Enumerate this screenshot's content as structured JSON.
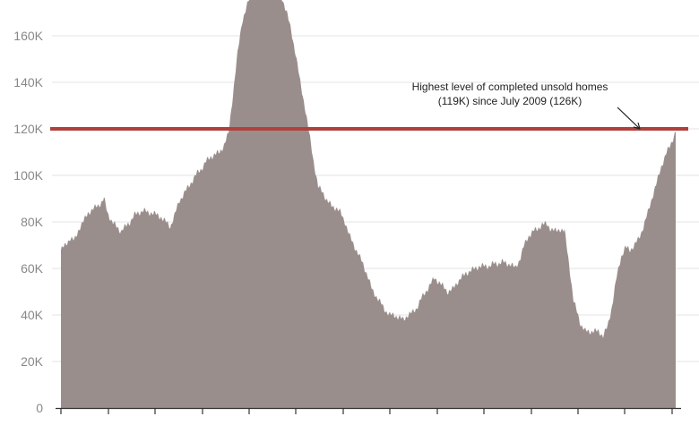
{
  "chart_data": {
    "type": "area",
    "title": "",
    "xlabel": "",
    "ylabel": "",
    "ylim": [
      0,
      176000
    ],
    "yticks": [
      0,
      20000,
      40000,
      60000,
      80000,
      100000,
      120000,
      140000,
      160000
    ],
    "ytick_labels": [
      "0",
      "20K",
      "40K",
      "60K",
      "80K",
      "100K",
      "120K",
      "140K",
      "160K"
    ],
    "grid": true,
    "x": [
      0,
      1,
      2,
      3,
      4,
      5,
      6,
      7,
      8,
      9,
      10,
      11,
      12,
      13,
      14,
      15,
      16,
      17,
      18,
      19,
      20,
      21,
      22,
      23,
      24,
      25,
      26,
      27,
      28,
      29,
      30,
      31,
      32,
      33,
      34,
      35,
      36,
      37,
      38,
      39,
      40,
      41,
      42,
      43,
      44,
      45,
      46,
      47,
      48,
      49,
      50,
      51,
      52,
      53,
      54,
      55,
      56,
      57,
      58,
      59,
      60,
      61,
      62,
      63,
      64,
      65,
      66,
      67,
      68,
      69,
      70,
      71,
      72,
      73,
      74,
      75,
      76,
      77,
      78,
      79,
      80,
      81,
      82,
      83,
      84,
      85,
      86,
      87,
      88,
      89,
      90,
      91,
      92,
      93,
      94,
      95,
      96,
      97,
      98,
      99,
      100,
      101,
      102,
      103,
      104,
      105,
      106,
      107,
      108,
      109,
      110,
      111,
      112,
      113,
      114,
      115,
      116,
      117,
      118,
      119,
      120,
      121,
      122,
      123,
      124,
      125,
      126,
      127,
      128,
      129,
      130,
      131,
      132,
      133,
      134,
      135,
      136,
      137,
      138,
      139,
      140,
      141,
      142,
      143,
      144,
      145,
      146,
      147,
      148,
      149,
      150,
      151,
      152,
      153,
      154,
      155,
      156,
      157,
      158,
      159,
      160,
      161,
      162,
      163,
      164,
      165,
      166,
      167,
      168,
      169,
      170,
      171,
      172,
      173,
      174,
      175,
      176,
      177,
      178,
      179,
      180,
      181,
      182,
      183,
      184,
      185,
      186,
      187,
      188,
      189,
      190,
      191,
      192,
      193,
      194,
      195,
      196,
      197,
      198,
      199,
      200,
      201,
      202,
      203,
      204,
      205,
      206,
      207,
      208,
      209,
      210,
      211,
      212,
      213,
      214,
      215,
      216,
      217,
      218,
      219,
      220,
      221,
      222,
      223,
      224,
      225,
      226,
      227,
      228,
      229,
      230,
      231,
      232,
      233,
      234,
      235,
      236,
      237,
      238,
      239,
      240,
      241,
      242,
      243,
      244,
      245,
      246,
      247,
      248,
      249,
      250,
      251,
      252,
      253,
      254,
      255,
      256,
      257,
      258,
      259,
      260,
      261,
      262,
      263,
      264,
      265,
      266,
      267,
      268,
      269,
      270,
      271,
      272,
      273,
      274,
      275,
      276,
      277,
      278,
      279,
      280,
      281,
      282,
      283,
      284,
      285,
      286,
      287,
      288,
      289,
      290,
      291,
      292,
      293,
      294,
      295,
      296,
      297,
      298,
      299,
      300,
      301,
      302,
      303,
      304,
      305,
      306,
      307,
      308,
      309,
      310,
      311,
      312,
      313,
      314,
      315,
      316,
      317,
      318,
      319,
      320,
      321,
      322,
      323,
      324,
      325,
      326,
      327,
      328,
      329,
      330,
      331,
      332,
      333,
      334,
      335,
      336,
      337,
      338,
      339,
      340,
      341,
      342,
      343,
      344,
      345,
      346,
      347,
      348,
      349,
      350,
      351,
      352,
      353,
      354,
      355,
      356,
      357,
      358,
      359,
      360,
      361,
      362,
      363,
      364,
      365,
      366,
      367,
      368,
      369,
      370,
      371,
      372,
      373,
      374,
      375,
      376,
      377,
      378,
      379,
      380,
      381,
      382,
      383,
      384,
      385,
      386,
      387,
      388,
      389,
      390,
      391,
      392,
      393,
      394,
      395,
      396,
      397,
      398,
      399,
      400,
      401,
      402,
      403,
      404,
      405,
      406,
      407,
      408,
      409,
      410,
      411,
      412,
      413,
      414,
      415,
      416,
      417,
      418,
      419,
      420,
      421,
      422,
      423,
      424,
      425,
      426,
      427,
      428,
      429,
      430,
      431,
      432,
      433,
      434,
      435,
      436,
      437,
      438,
      439,
      440,
      441,
      442,
      443,
      444,
      445,
      446,
      447,
      448,
      449,
      450,
      451,
      452,
      453,
      454,
      455,
      456,
      457,
      458,
      459,
      460,
      461,
      462,
      463,
      464,
      465,
      466,
      467,
      468,
      469,
      470,
      471,
      472,
      473,
      474,
      475,
      476,
      477,
      478,
      479,
      480,
      481,
      482,
      483,
      484,
      485,
      486,
      487,
      488,
      489,
      490,
      491,
      492,
      493,
      494,
      495,
      496,
      497,
      498,
      499,
      500,
      501,
      502,
      503,
      504,
      505,
      506,
      507,
      508,
      509,
      510,
      511,
      512,
      513,
      514,
      515,
      516,
      517,
      518,
      519,
      520,
      521,
      522,
      523,
      524,
      525,
      526,
      527,
      528,
      529,
      530,
      531,
      532,
      533,
      534,
      535,
      536,
      537,
      538,
      539,
      540,
      541,
      542,
      543,
      544,
      545,
      546,
      547,
      548,
      549,
      550,
      551,
      552,
      553,
      554,
      555,
      556,
      557,
      558,
      559,
      560,
      561,
      562,
      563,
      564,
      565,
      566,
      567,
      568,
      569,
      570,
      571,
      572,
      573,
      574,
      575,
      576,
      577,
      578,
      579,
      580,
      581,
      582,
      583,
      584,
      585,
      586,
      587,
      588,
      589,
      590,
      591,
      592,
      593,
      594,
      595,
      596,
      597,
      598,
      599,
      600,
      601,
      602,
      603,
      604,
      605,
      606,
      607,
      608,
      609,
      610,
      611,
      612,
      613,
      614,
      615,
      616,
      617,
      618,
      619,
      620,
      621,
      622,
      623,
      624,
      625,
      626,
      627,
      628,
      629,
      630,
      631,
      632,
      633,
      634,
      635,
      636,
      637,
      638,
      639,
      640,
      641,
      642,
      643,
      644,
      645,
      646,
      647,
      648,
      649,
      650,
      651,
      652,
      653,
      654,
      655,
      656,
      657,
      658,
      659,
      660,
      661,
      662,
      663,
      664,
      665,
      666,
      667,
      668,
      669,
      670,
      671,
      672,
      673,
      674,
      675,
      676,
      677,
      678,
      679,
      680,
      681,
      682,
      683,
      684,
      685,
      686
    ],
    "series": [
      {
        "color": "#9a8e8d",
        "keypoints": [
          [
            0,
            68000
          ],
          [
            5,
            70000
          ],
          [
            10,
            73000
          ],
          [
            15,
            72000
          ],
          [
            20,
            77000
          ],
          [
            25,
            80000
          ],
          [
            30,
            84000
          ],
          [
            35,
            85000
          ],
          [
            40,
            87000
          ],
          [
            45,
            88000
          ],
          [
            48,
            90000
          ],
          [
            52,
            84000
          ],
          [
            57,
            80000
          ],
          [
            62,
            78000
          ],
          [
            67,
            76000
          ],
          [
            72,
            78000
          ],
          [
            77,
            80000
          ],
          [
            82,
            83000
          ],
          [
            87,
            84000
          ],
          [
            92,
            85000
          ],
          [
            97,
            84000
          ],
          [
            102,
            84000
          ],
          [
            107,
            83000
          ],
          [
            112,
            82000
          ],
          [
            117,
            80000
          ],
          [
            122,
            78000
          ],
          [
            127,
            83000
          ],
          [
            132,
            89000
          ],
          [
            137,
            92000
          ],
          [
            142,
            95000
          ],
          [
            147,
            98000
          ],
          [
            152,
            101000
          ],
          [
            157,
            103000
          ],
          [
            162,
            106000
          ],
          [
            167,
            108000
          ],
          [
            172,
            109000
          ],
          [
            177,
            110000
          ],
          [
            182,
            113000
          ],
          [
            187,
            118000
          ],
          [
            192,
            135000
          ],
          [
            197,
            152000
          ],
          [
            202,
            166000
          ],
          [
            207,
            172000
          ],
          [
            212,
            178000
          ],
          [
            217,
            180000
          ],
          [
            222,
            181000
          ],
          [
            227,
            180000
          ],
          [
            232,
            180000
          ],
          [
            237,
            180000
          ],
          [
            242,
            178000
          ],
          [
            247,
            176000
          ],
          [
            252,
            170000
          ],
          [
            257,
            162000
          ],
          [
            262,
            152000
          ],
          [
            267,
            140000
          ],
          [
            272,
            130000
          ],
          [
            277,
            118000
          ],
          [
            282,
            106000
          ],
          [
            287,
            95000
          ],
          [
            292,
            93000
          ],
          [
            297,
            89000
          ],
          [
            302,
            87000
          ],
          [
            307,
            86000
          ],
          [
            312,
            84000
          ],
          [
            317,
            80000
          ],
          [
            322,
            74000
          ],
          [
            327,
            70000
          ],
          [
            332,
            66000
          ],
          [
            337,
            62000
          ],
          [
            342,
            57000
          ],
          [
            347,
            51000
          ],
          [
            352,
            48000
          ],
          [
            357,
            45000
          ],
          [
            362,
            42000
          ],
          [
            367,
            40000
          ],
          [
            372,
            40000
          ],
          [
            377,
            39000
          ],
          [
            382,
            38000
          ],
          [
            387,
            40000
          ],
          [
            392,
            41000
          ],
          [
            397,
            43000
          ],
          [
            402,
            47000
          ],
          [
            407,
            50000
          ],
          [
            412,
            53000
          ],
          [
            417,
            56000
          ],
          [
            422,
            54000
          ],
          [
            427,
            52000
          ],
          [
            432,
            50000
          ],
          [
            437,
            51000
          ],
          [
            442,
            54000
          ],
          [
            447,
            56000
          ],
          [
            452,
            58000
          ],
          [
            457,
            59000
          ],
          [
            462,
            60000
          ],
          [
            467,
            61000
          ],
          [
            472,
            61000
          ],
          [
            477,
            61000
          ],
          [
            482,
            62000
          ],
          [
            487,
            62000
          ],
          [
            492,
            63000
          ],
          [
            497,
            62000
          ],
          [
            502,
            62000
          ],
          [
            507,
            60000
          ],
          [
            512,
            64000
          ],
          [
            517,
            70000
          ],
          [
            522,
            74000
          ],
          [
            527,
            76000
          ],
          [
            532,
            77000
          ],
          [
            537,
            79000
          ],
          [
            542,
            79000
          ],
          [
            547,
            77000
          ],
          [
            552,
            76000
          ],
          [
            557,
            77000
          ],
          [
            562,
            76000
          ],
          [
            567,
            62000
          ],
          [
            572,
            46000
          ],
          [
            577,
            40000
          ],
          [
            580,
            36000
          ],
          [
            585,
            33000
          ],
          [
            590,
            33000
          ],
          [
            595,
            33000
          ],
          [
            600,
            33000
          ],
          [
            605,
            31000
          ],
          [
            610,
            35000
          ],
          [
            615,
            44000
          ],
          [
            620,
            56000
          ],
          [
            625,
            65000
          ],
          [
            630,
            69000
          ],
          [
            635,
            68000
          ],
          [
            640,
            70000
          ],
          [
            645,
            73000
          ],
          [
            650,
            78000
          ],
          [
            655,
            84000
          ],
          [
            660,
            91000
          ],
          [
            665,
            97000
          ],
          [
            670,
            104000
          ],
          [
            675,
            109000
          ],
          [
            680,
            113000
          ],
          [
            686,
            119000
          ]
        ]
      }
    ],
    "reference_line": {
      "value": 120000,
      "color": "#b0403c"
    },
    "annotation": {
      "line1": "Highest level of completed unsold homes",
      "line2": "(119K) since July 2009 (126K)"
    }
  }
}
